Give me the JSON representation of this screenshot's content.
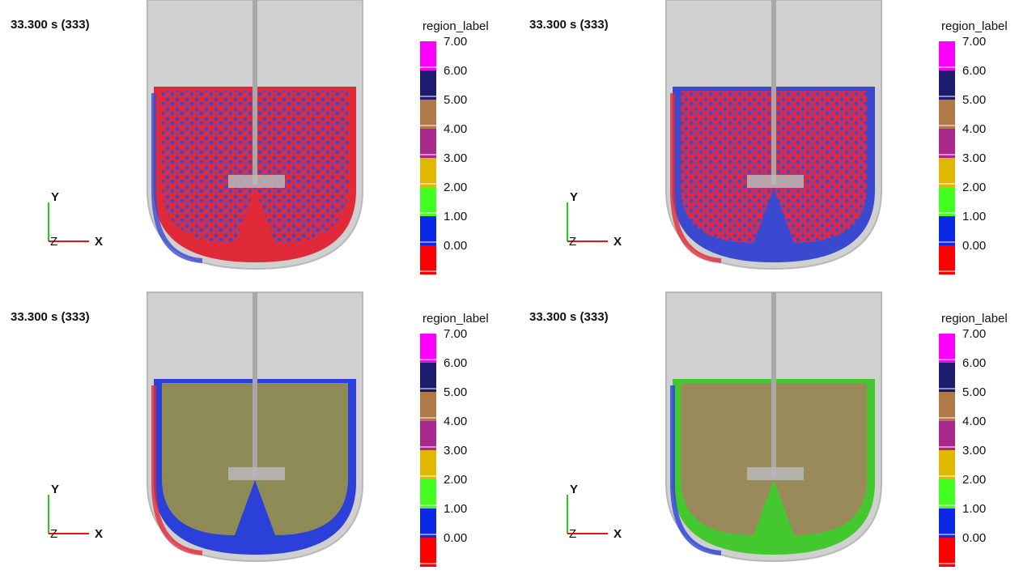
{
  "panels": [
    {
      "time": "33.300 s (333)",
      "legend": {
        "title": "region_label",
        "labels": [
          "7.00",
          "6.00",
          "5.00",
          "4.00",
          "3.00",
          "2.00",
          "1.00",
          "0.00"
        ]
      },
      "axes": {
        "y": "Y",
        "z": "Z",
        "x": "X"
      }
    },
    {
      "time": "33.300 s (333)",
      "legend": {
        "title": "region_label",
        "labels": [
          "7.00",
          "6.00",
          "5.00",
          "4.00",
          "3.00",
          "2.00",
          "1.00",
          "0.00"
        ]
      },
      "axes": {
        "y": "Y",
        "z": "Z",
        "x": "X"
      }
    },
    {
      "time": "33.300 s (333)",
      "legend": {
        "title": "region_label",
        "labels": [
          "7.00",
          "6.00",
          "5.00",
          "4.00",
          "3.00",
          "2.00",
          "1.00",
          "0.00"
        ]
      },
      "axes": {
        "y": "Y",
        "z": "Z",
        "x": "X"
      }
    },
    {
      "time": "33.300 s (333)",
      "legend": {
        "title": "region_label",
        "labels": [
          "7.00",
          "6.00",
          "5.00",
          "4.00",
          "3.00",
          "2.00",
          "1.00",
          "0.00"
        ]
      },
      "axes": {
        "y": "Y",
        "z": "Z",
        "x": "X"
      }
    }
  ],
  "legend_colors": [
    "#ff00ff",
    "#1c1c6e",
    "#b07a48",
    "#a8288c",
    "#e0b800",
    "#44ff22",
    "#0a28e6",
    "#ff0000"
  ]
}
